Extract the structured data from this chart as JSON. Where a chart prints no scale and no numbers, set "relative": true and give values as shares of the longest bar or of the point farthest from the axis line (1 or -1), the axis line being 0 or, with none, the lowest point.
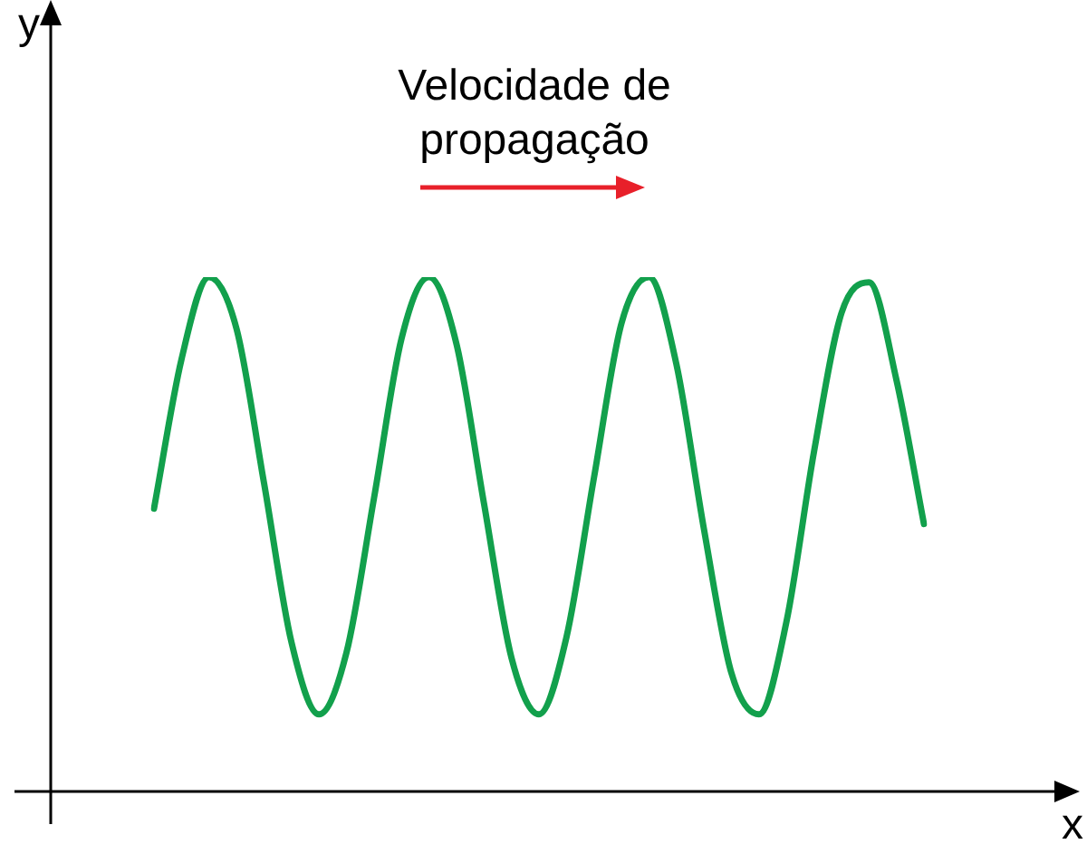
{
  "chart_data": {
    "type": "line",
    "relative": true,
    "xlabel": "x",
    "annotations": [
      "Velocidade de propagação",
      "y"
    ],
    "marker": "none",
    "line_style": "solid",
    "legend": false,
    "categories": [
      null,
      null,
      null,
      null,
      null,
      null,
      null,
      null,
      null,
      null,
      null,
      null,
      null,
      null,
      null,
      null,
      null,
      null,
      null,
      null,
      null,
      null,
      null,
      null,
      null,
      null,
      null,
      null,
      null
    ],
    "series": [
      {
        "color": "#12a04c",
        "values": [
          0.55,
          0.84,
          1,
          0.9,
          0.6,
          0.29,
          0.15,
          0.27,
          0.57,
          0.88,
          1,
          0.87,
          0.56,
          0.26,
          0.15,
          0.3,
          0.61,
          0.91,
          1,
          0.83,
          0.51,
          0.23,
          0.15,
          0.33,
          0.66,
          0.93,
          0.99,
          0.8,
          0.52
        ]
      }
    ]
  }
}
